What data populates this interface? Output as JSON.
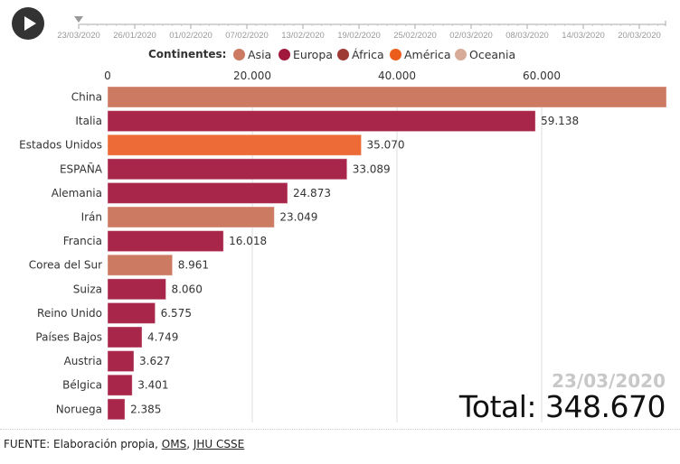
{
  "controls": {
    "play_icon": "play-icon"
  },
  "timeline": {
    "current_date": "23/03/2020",
    "tick_labels": [
      "23/03/2020",
      "26/01/2020",
      "01/02/2020",
      "07/02/2020",
      "13/02/2020",
      "19/02/2020",
      "25/02/2020",
      "02/03/2020",
      "08/03/2020",
      "14/03/2020",
      "20/03/2020"
    ]
  },
  "legend": {
    "title": "Continentes:",
    "items": [
      {
        "label": "Asia",
        "color": "#cc7a62"
      },
      {
        "label": "Europa",
        "color": "#a0183c"
      },
      {
        "label": "África",
        "color": "#9e3a36"
      },
      {
        "label": "América",
        "color": "#ec5d1c"
      },
      {
        "label": "Oceania",
        "color": "#d8ab99"
      }
    ]
  },
  "chart_data": {
    "type": "bar",
    "orientation": "horizontal",
    "title": "",
    "xlabel": "",
    "ylabel": "",
    "xlim": [
      0,
      77250
    ],
    "x_ticks": [
      0,
      20000,
      40000,
      60000
    ],
    "x_tick_labels": [
      "0",
      "20.000",
      "40.000",
      "60.000"
    ],
    "grid": true,
    "categories": [
      "China",
      "Italia",
      "Estados Unidos",
      "ESPAÑA",
      "Alemania",
      "Irán",
      "Francia",
      "Corea del Sur",
      "Suiza",
      "Reino Unido",
      "Países Bajos",
      "Austria",
      "Bélgica",
      "Noruega"
    ],
    "values": [
      77250,
      59138,
      35070,
      33089,
      24873,
      23049,
      16018,
      8961,
      8060,
      6575,
      4749,
      3627,
      3401,
      2385
    ],
    "value_labels": [
      "",
      "59.138",
      "35.070",
      "33.089",
      "24.873",
      "23.049",
      "16.018",
      "8.961",
      "8.060",
      "6.575",
      "4.749",
      "3.627",
      "3.401",
      "2.385"
    ],
    "continents": [
      "Asia",
      "Europa",
      "América",
      "Europa",
      "Europa",
      "Asia",
      "Europa",
      "Asia",
      "Europa",
      "Europa",
      "Europa",
      "Europa",
      "Europa",
      "Europa"
    ],
    "colors": {
      "Asia": "#cc7a62",
      "Europa": "#a8264a",
      "América": "#ec6b36",
      "África": "#9e3a36",
      "Oceania": "#d8ab99"
    }
  },
  "overlay": {
    "date": "23/03/2020",
    "total": "Total: 348.670"
  },
  "source": {
    "prefix": "FUENTE: Elaboración propia, ",
    "link1": "OMS",
    "sep": ", ",
    "link2": "JHU CSSE"
  }
}
